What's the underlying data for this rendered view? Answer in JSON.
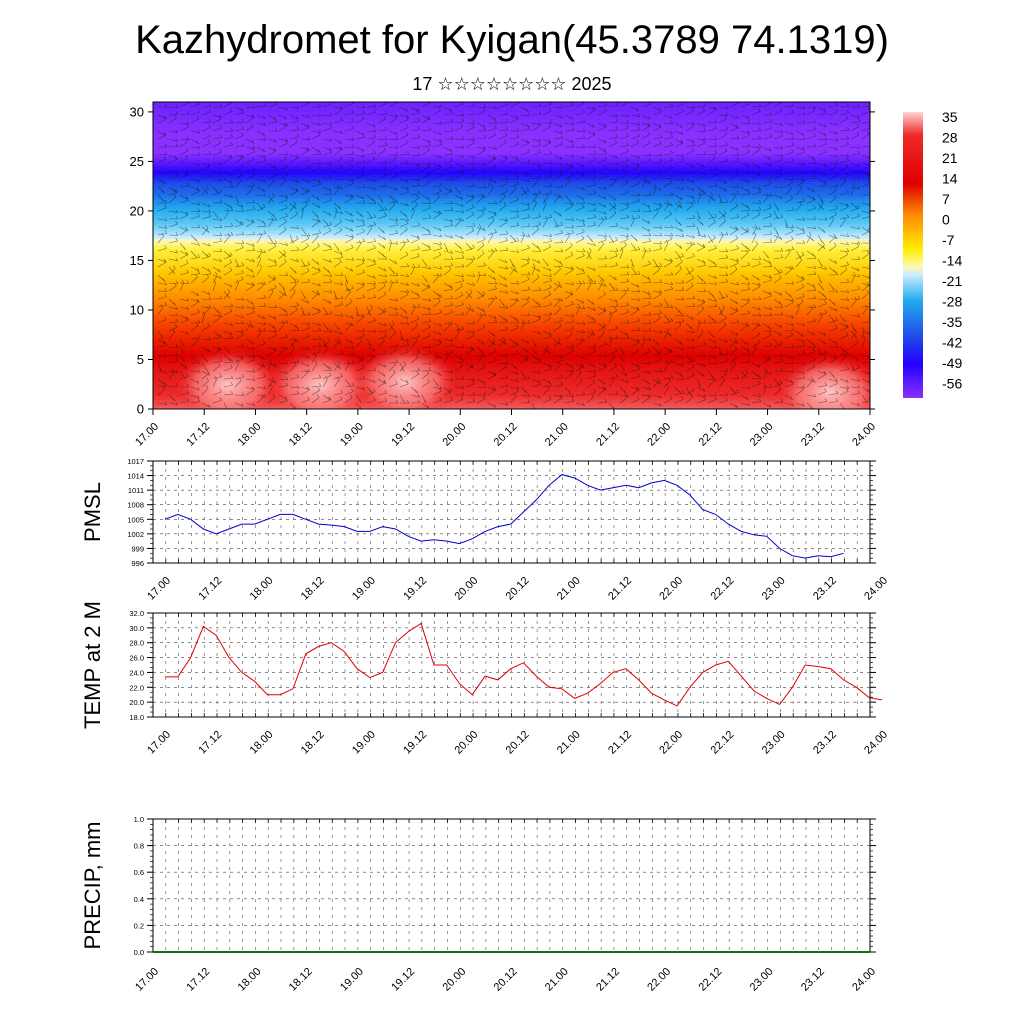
{
  "header": {
    "title": "Kazhydromet for Kyigan(45.3789 74.1319)",
    "subtitle": "17 ☆☆☆☆☆☆☆☆ 2025"
  },
  "colors": {
    "pmsl_line": "#0000cc",
    "temp_line": "#e00000",
    "frame": "#000000",
    "grid": "#555555"
  },
  "chart_data": [
    {
      "type": "heatmap",
      "title": "",
      "xlabel": "",
      "ylabel": "",
      "x_ticks": [
        "17.00",
        "17.12",
        "18.00",
        "18.12",
        "19.00",
        "19.12",
        "20.00",
        "20.12",
        "21.00",
        "21.12",
        "22.00",
        "22.12",
        "23.00",
        "23.12",
        "24.00"
      ],
      "y_ticks": [
        "0",
        "5",
        "10",
        "15",
        "20",
        "25",
        "30"
      ],
      "ylim": [
        0,
        31
      ],
      "colorbar_labels": [
        "35",
        "28",
        "21",
        "14",
        "7",
        "0",
        "-7",
        "-14",
        "-21",
        "-28",
        "-35",
        "-42",
        "-49",
        "-56"
      ],
      "overlay": "wind barbs",
      "level_profile_temperature": [
        {
          "level": 0,
          "value": 30
        },
        {
          "level": 4,
          "value": 24
        },
        {
          "level": 9,
          "value": 12
        },
        {
          "level": 13,
          "value": 2
        },
        {
          "level": 16,
          "value": -7
        },
        {
          "level": 18,
          "value": -18
        },
        {
          "level": 21,
          "value": -32
        },
        {
          "level": 24,
          "value": -50
        },
        {
          "level": 26,
          "value": -57
        },
        {
          "level": 31,
          "value": -54
        }
      ]
    },
    {
      "type": "line",
      "title": "",
      "ylabel": "PMSL",
      "xlabel": "",
      "ylim": [
        996,
        1017
      ],
      "y_ticks": [
        "1017",
        "1014",
        "1011",
        "1008",
        "1005",
        "1002",
        "999",
        "996"
      ],
      "x_ticks": [
        "17.00",
        "17.12",
        "18.00",
        "18.12",
        "19.00",
        "19.12",
        "20.00",
        "20.12",
        "21.00",
        "21.12",
        "22.00",
        "22.12",
        "23.00",
        "23.12",
        "24.00"
      ],
      "x_step_hours": 3,
      "values": [
        1005,
        1006,
        1005,
        1003,
        1002,
        1003,
        1004,
        1004,
        1005,
        1006,
        1006,
        1005,
        1004,
        1003.8,
        1003.5,
        1002.5,
        1002.5,
        1003.5,
        1003,
        1001.5,
        1000.5,
        1000.8,
        1000.5,
        1000,
        1001,
        1002.5,
        1003.5,
        1004,
        1006.5,
        1009,
        1012,
        1014.2,
        1013.5,
        1012,
        1011,
        1011.5,
        1012,
        1011.5,
        1012.5,
        1013,
        1012,
        1010,
        1007,
        1006,
        1004,
        1002.5,
        1001.8,
        1001.5,
        999,
        997.5,
        997,
        997.5,
        997.3,
        998
      ]
    },
    {
      "type": "line",
      "title": "",
      "ylabel": "TEMP at 2 M",
      "xlabel": "",
      "ylim": [
        18,
        32
      ],
      "y_ticks": [
        "32.0",
        "30.0",
        "28.0",
        "26.0",
        "24.0",
        "22.0",
        "20.0",
        "18.0"
      ],
      "x_ticks": [
        "17.00",
        "17.12",
        "18.00",
        "18.12",
        "19.00",
        "19.12",
        "20.00",
        "20.12",
        "21.00",
        "21.12",
        "22.00",
        "22.12",
        "23.00",
        "23.12",
        "24.00"
      ],
      "x_step_hours": 3,
      "values": [
        23.4,
        23.4,
        26,
        30.2,
        29,
        26,
        24,
        22.8,
        21,
        21,
        21.8,
        26.5,
        27.5,
        28,
        26.8,
        24.5,
        23.3,
        24,
        28,
        29.5,
        30.6,
        25,
        25,
        22.5,
        21,
        23.5,
        23,
        24.5,
        25.3,
        23.5,
        22,
        21.8,
        20.5,
        21.2,
        22.5,
        24,
        24.5,
        23,
        21.2,
        20.3,
        19.5,
        22,
        24,
        25,
        25.5,
        23.5,
        21.5,
        20.5,
        19.7,
        22,
        25,
        24.8,
        24.5,
        23,
        22,
        20.6,
        20.3
      ]
    },
    {
      "type": "bar",
      "title": "",
      "ylabel": "PRECIP, mm",
      "xlabel": "",
      "ylim": [
        0,
        1
      ],
      "y_ticks": [
        "1.0",
        "0.8",
        "0.6",
        "0.4",
        "0.2",
        "0.0"
      ],
      "x_ticks": [
        "17.00",
        "17.12",
        "18.00",
        "18.12",
        "19.00",
        "19.12",
        "20.00",
        "20.12",
        "21.00",
        "21.12",
        "22.00",
        "22.12",
        "23.00",
        "23.12",
        "24.00"
      ],
      "values": []
    }
  ]
}
